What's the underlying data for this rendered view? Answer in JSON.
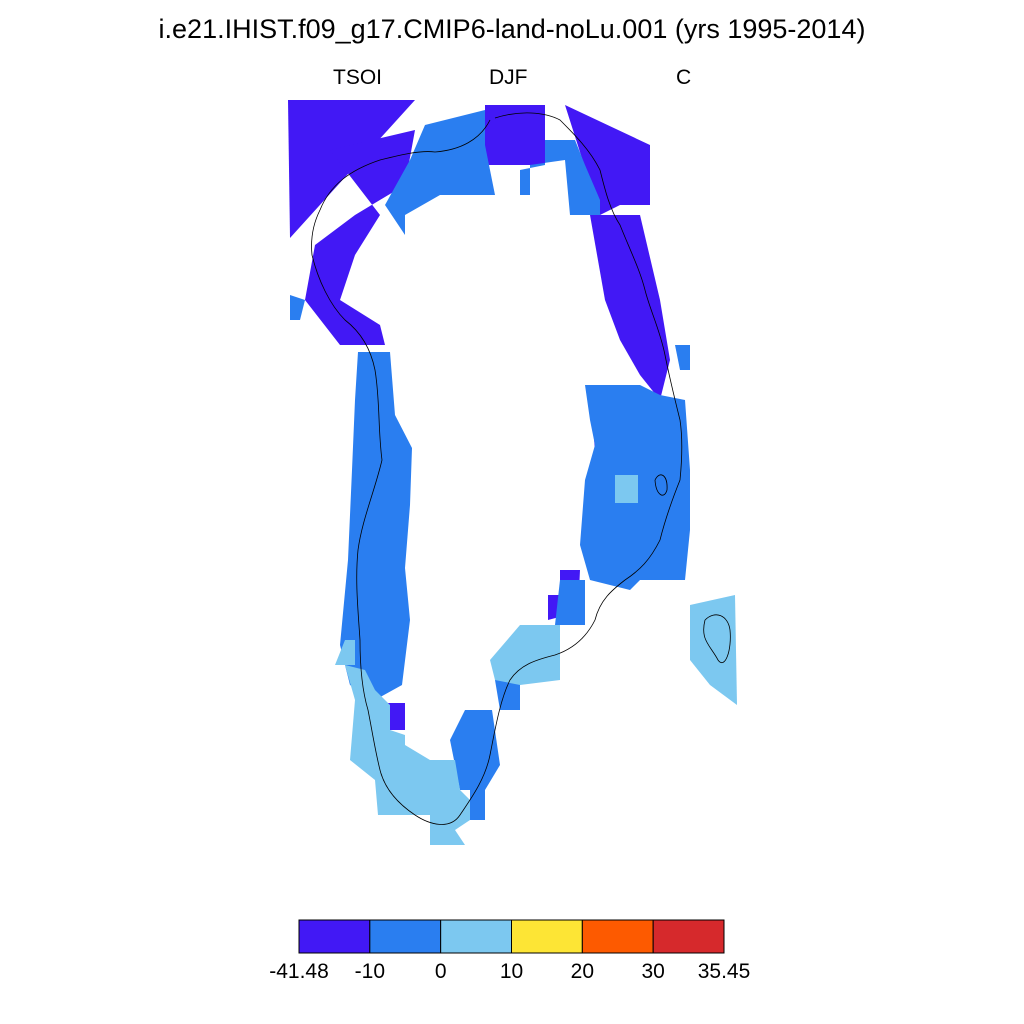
{
  "title": "i.e21.IHIST.f09_g17.CMIP6-land-noLu.001 (yrs 1995-2014)",
  "variable": "TSOI",
  "season": "DJF",
  "units": "C",
  "colorbar": {
    "bins": [
      {
        "low": -41.48,
        "high": -10,
        "color": "#4218f5"
      },
      {
        "low": -10,
        "high": 0,
        "color": "#2a7ef0"
      },
      {
        "low": 0,
        "high": 10,
        "color": "#7cc8f0"
      },
      {
        "low": 10,
        "high": 20,
        "color": "#fde535"
      },
      {
        "low": 20,
        "high": 30,
        "color": "#fd5a00"
      },
      {
        "low": 30,
        "high": 35.45,
        "color": "#d6292c"
      }
    ],
    "tick_labels": [
      "-41.48",
      "-10",
      "0",
      "10",
      "20",
      "30",
      "35.45"
    ]
  }
}
